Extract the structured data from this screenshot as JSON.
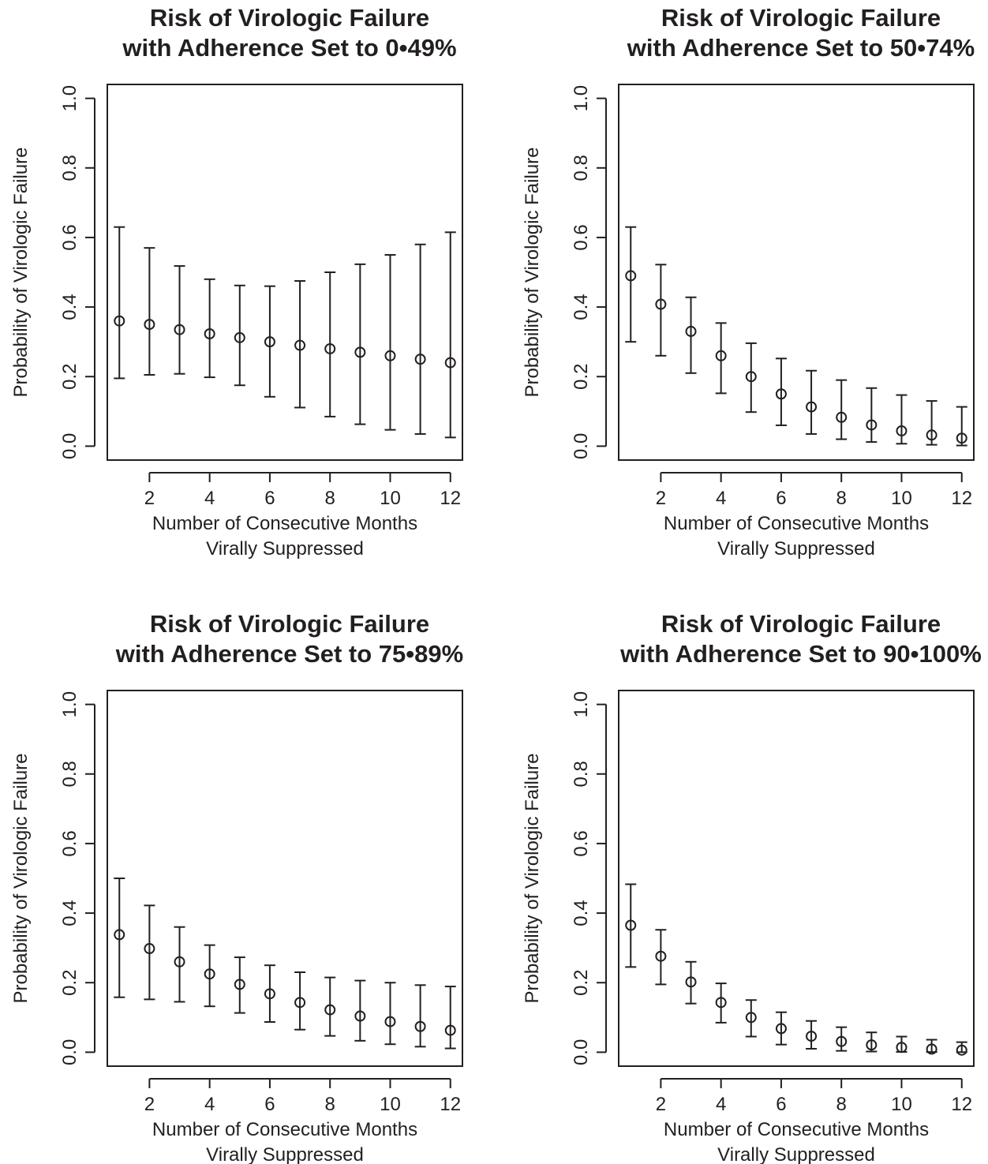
{
  "chart_data": [
    {
      "type": "scatter",
      "title": [
        "Risk of Virologic Failure",
        "with Adherence Set to 0•49%"
      ],
      "xlabel": [
        "Number of Consecutive Months",
        "Virally Suppressed"
      ],
      "ylabel": "Probability of Virologic Failure",
      "xlim": [
        0.6,
        12.4
      ],
      "ylim": [
        -0.04,
        1.04
      ],
      "xticks": [
        2,
        4,
        6,
        8,
        10,
        12
      ],
      "yticks": [
        "0.0",
        "0.2",
        "0.4",
        "0.6",
        "0.8",
        "1.0"
      ],
      "grid": false,
      "x": [
        1,
        2,
        3,
        4,
        5,
        6,
        7,
        8,
        9,
        10,
        11,
        12
      ],
      "y": [
        0.36,
        0.35,
        0.335,
        0.323,
        0.312,
        0.3,
        0.29,
        0.28,
        0.27,
        0.26,
        0.25,
        0.24
      ],
      "lower": [
        0.195,
        0.205,
        0.208,
        0.198,
        0.175,
        0.142,
        0.111,
        0.085,
        0.063,
        0.047,
        0.035,
        0.025
      ],
      "upper": [
        0.63,
        0.57,
        0.518,
        0.48,
        0.462,
        0.46,
        0.475,
        0.5,
        0.523,
        0.55,
        0.58,
        0.615
      ]
    },
    {
      "type": "scatter",
      "title": [
        "Risk of Virologic Failure",
        "with Adherence Set to 50•74%"
      ],
      "xlabel": [
        "Number of Consecutive Months",
        "Virally Suppressed"
      ],
      "ylabel": "Probability of Virologic Failure",
      "xlim": [
        0.6,
        12.4
      ],
      "ylim": [
        -0.04,
        1.04
      ],
      "xticks": [
        2,
        4,
        6,
        8,
        10,
        12
      ],
      "yticks": [
        "0.0",
        "0.2",
        "0.4",
        "0.6",
        "0.8",
        "1.0"
      ],
      "grid": false,
      "x": [
        1,
        2,
        3,
        4,
        5,
        6,
        7,
        8,
        9,
        10,
        11,
        12
      ],
      "y": [
        0.49,
        0.408,
        0.33,
        0.26,
        0.2,
        0.15,
        0.113,
        0.083,
        0.061,
        0.044,
        0.032,
        0.023
      ],
      "lower": [
        0.3,
        0.26,
        0.21,
        0.152,
        0.098,
        0.06,
        0.035,
        0.02,
        0.012,
        0.007,
        0.004,
        0.002
      ],
      "upper": [
        0.63,
        0.522,
        0.428,
        0.354,
        0.296,
        0.252,
        0.217,
        0.19,
        0.167,
        0.147,
        0.13,
        0.113
      ]
    },
    {
      "type": "scatter",
      "title": [
        "Risk of Virologic Failure",
        "with Adherence Set to 75•89%"
      ],
      "xlabel": [
        "Number of Consecutive Months",
        "Virally Suppressed"
      ],
      "ylabel": "Probability of Virologic Failure",
      "xlim": [
        0.6,
        12.4
      ],
      "ylim": [
        -0.04,
        1.04
      ],
      "xticks": [
        2,
        4,
        6,
        8,
        10,
        12
      ],
      "yticks": [
        "0.0",
        "0.2",
        "0.4",
        "0.6",
        "0.8",
        "1.0"
      ],
      "grid": false,
      "x": [
        1,
        2,
        3,
        4,
        5,
        6,
        7,
        8,
        9,
        10,
        11,
        12
      ],
      "y": [
        0.338,
        0.298,
        0.26,
        0.225,
        0.195,
        0.168,
        0.143,
        0.122,
        0.104,
        0.088,
        0.074,
        0.063
      ],
      "lower": [
        0.158,
        0.152,
        0.145,
        0.132,
        0.113,
        0.087,
        0.065,
        0.047,
        0.033,
        0.023,
        0.016,
        0.011
      ],
      "upper": [
        0.5,
        0.422,
        0.36,
        0.308,
        0.273,
        0.25,
        0.23,
        0.215,
        0.206,
        0.2,
        0.193,
        0.189
      ]
    },
    {
      "type": "scatter",
      "title": [
        "Risk of Virologic Failure",
        "with Adherence Set to 90•100%"
      ],
      "xlabel": [
        "Number of Consecutive Months",
        "Virally Suppressed"
      ],
      "ylabel": "Probability of Virologic Failure",
      "xlim": [
        0.6,
        12.4
      ],
      "ylim": [
        -0.04,
        1.04
      ],
      "xticks": [
        2,
        4,
        6,
        8,
        10,
        12
      ],
      "yticks": [
        "0.0",
        "0.2",
        "0.4",
        "0.6",
        "0.8",
        "1.0"
      ],
      "grid": false,
      "x": [
        1,
        2,
        3,
        4,
        5,
        6,
        7,
        8,
        9,
        10,
        11,
        12
      ],
      "y": [
        0.365,
        0.276,
        0.202,
        0.143,
        0.1,
        0.068,
        0.046,
        0.031,
        0.021,
        0.014,
        0.009,
        0.006
      ],
      "lower": [
        0.245,
        0.195,
        0.14,
        0.085,
        0.045,
        0.022,
        0.01,
        0.004,
        0.002,
        0.001,
        0.0005,
        0.0002
      ],
      "upper": [
        0.483,
        0.352,
        0.26,
        0.198,
        0.15,
        0.115,
        0.09,
        0.072,
        0.057,
        0.045,
        0.036,
        0.029
      ]
    }
  ]
}
